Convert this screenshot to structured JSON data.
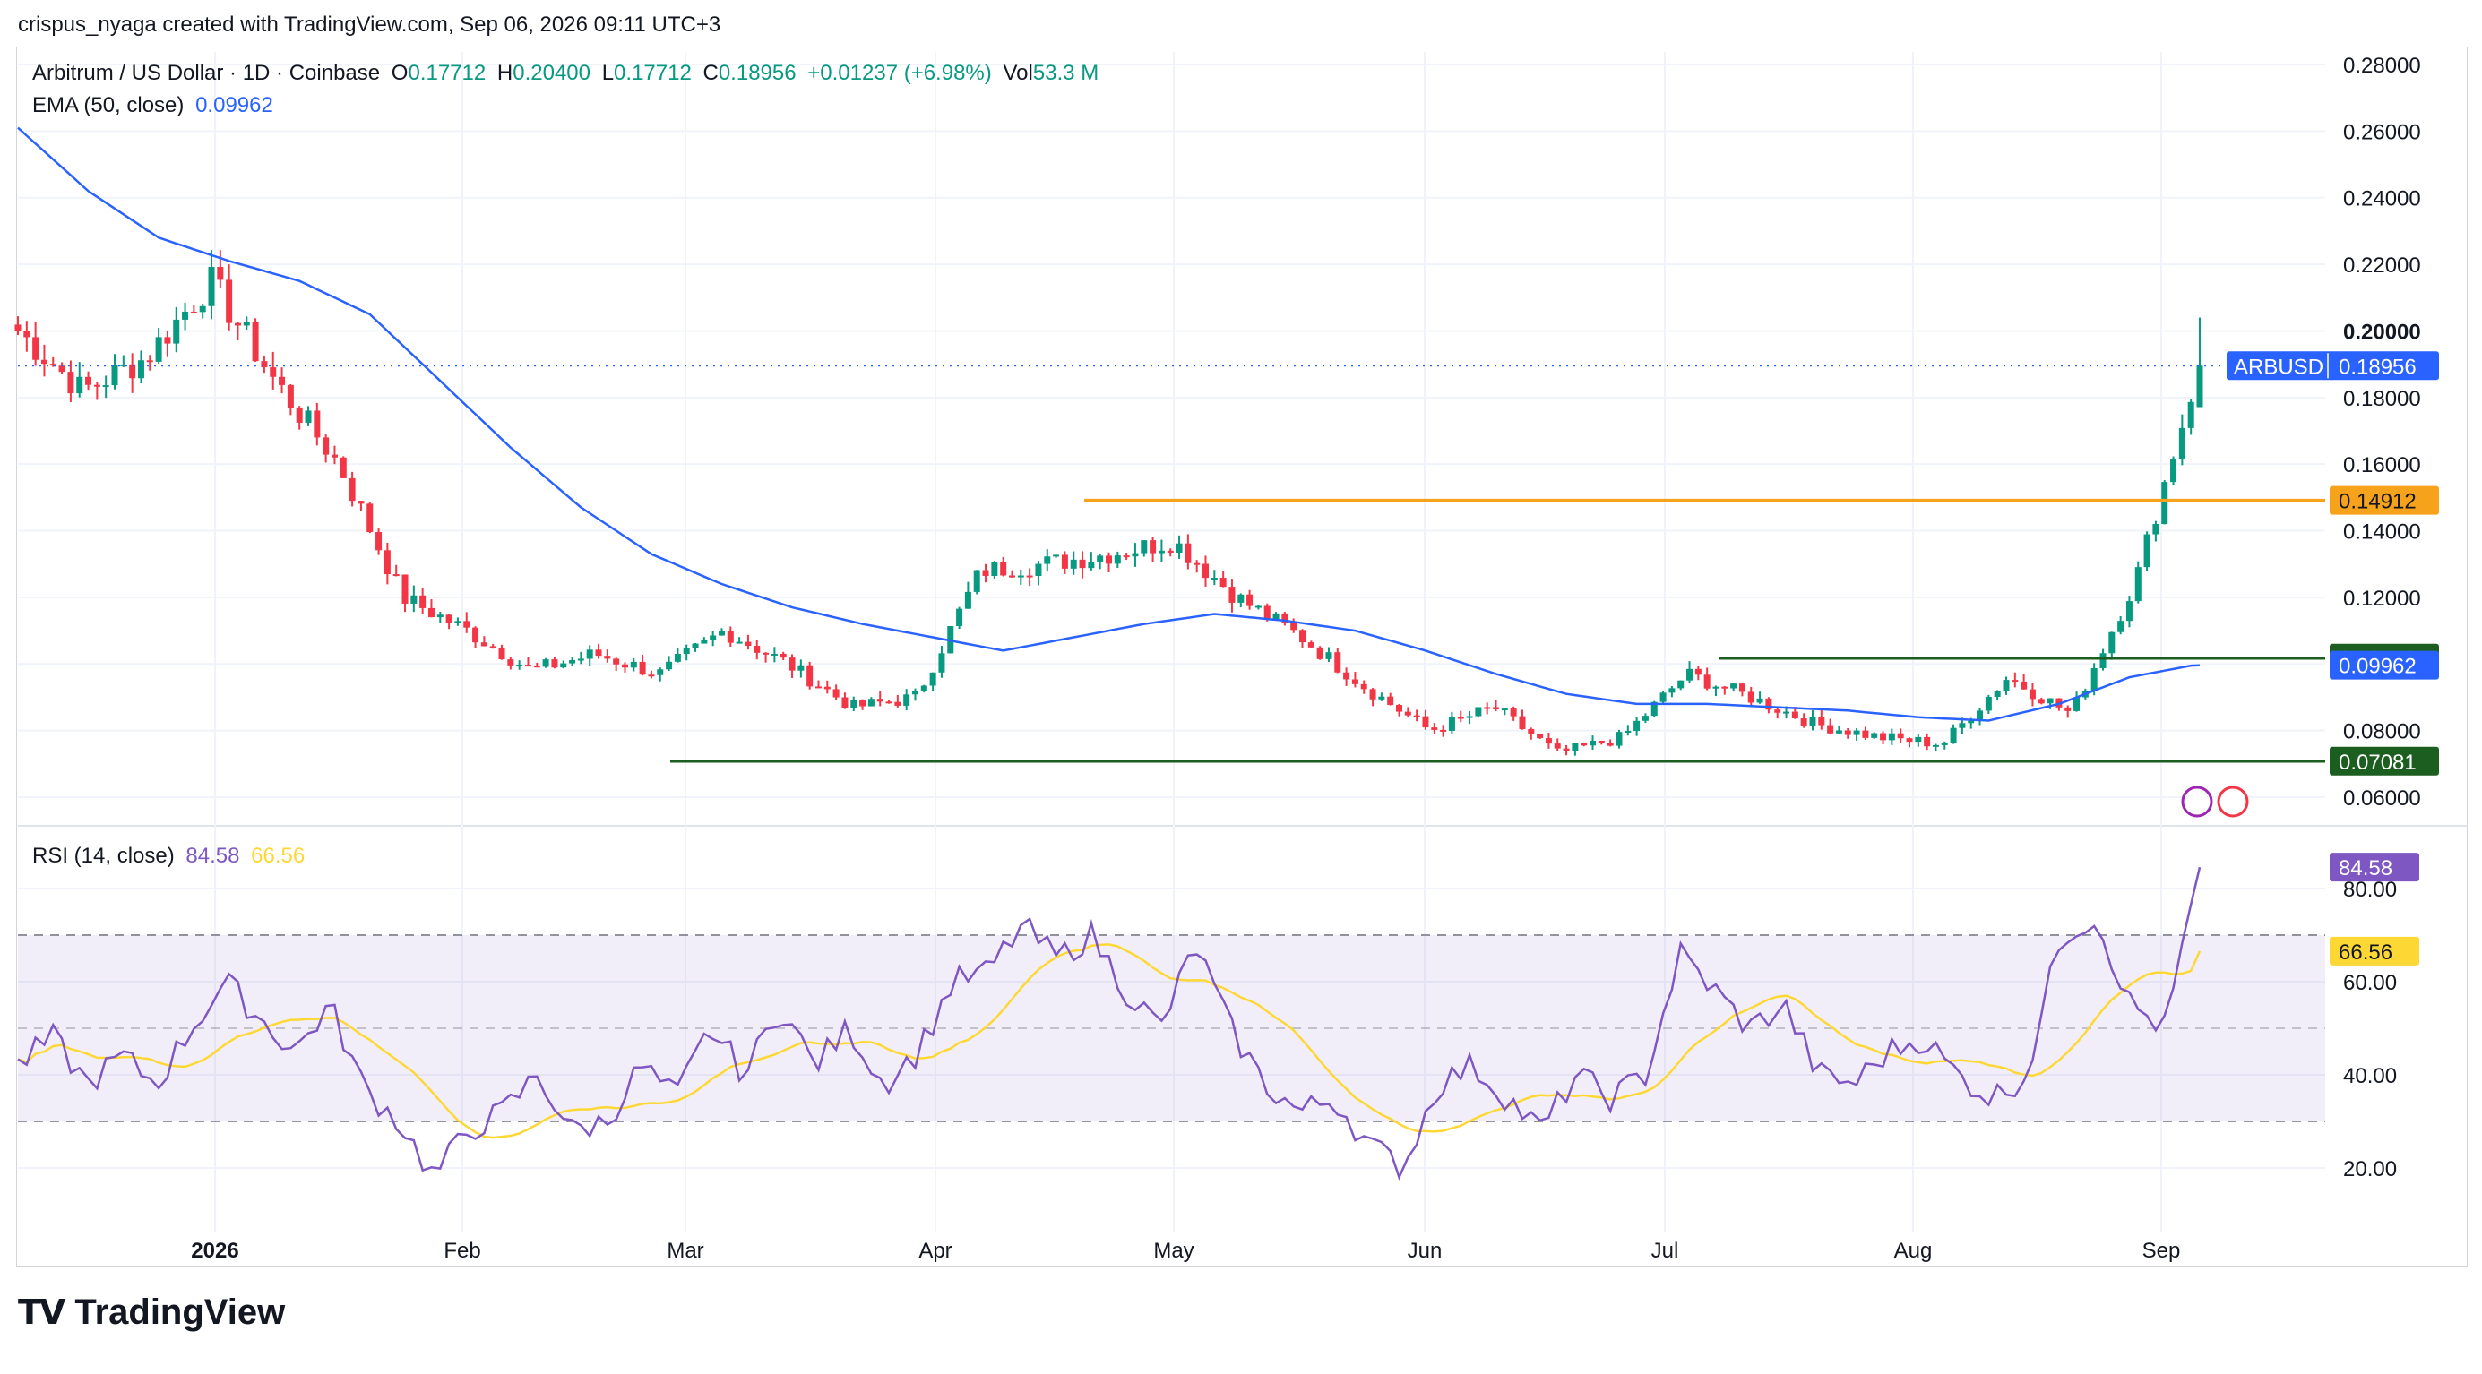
{
  "attribution": "crispus_nyaga created with TradingView.com, Sep 06, 2026 09:11 UTC+3",
  "legend": {
    "symbol": "Arbitrum / US Dollar · 1D · Coinbase",
    "o_label": "O",
    "o": "0.17712",
    "h_label": "H",
    "h": "0.20400",
    "l_label": "L",
    "l": "0.17712",
    "c_label": "C",
    "c": "0.18956",
    "change": "+0.01237 (+6.98%)",
    "vol_label": "Vol",
    "vol": "53.3 M",
    "ema_label": "EMA (50, close)",
    "ema": "0.09962",
    "rsi_label": "RSI (14, close)",
    "rsi": "84.58",
    "rsi_ma": "66.56"
  },
  "price_tag": {
    "symbol": "ARBUSD",
    "value": "0.18956"
  },
  "brand": "TradingView",
  "colors": {
    "up": "#089981",
    "down": "#f23645",
    "ema": "#2962ff",
    "resistance": "#f7a21b",
    "support": "#1b5e20",
    "rsi": "#7e57c2",
    "rsi_ma": "#fdd835",
    "price_tag": "#2962ff"
  },
  "chart_data": [
    {
      "type": "candlestick",
      "title": "Arbitrum / US Dollar · 1D · Coinbase",
      "x_ticks": [
        "2026",
        "Feb",
        "Mar",
        "Apr",
        "May",
        "Jun",
        "Jul",
        "Aug",
        "Sep"
      ],
      "ylim": [
        0.05,
        0.285
      ],
      "y_ticks": [
        "0.28000",
        "0.26000",
        "0.24000",
        "0.22000",
        "0.20000",
        "0.18000",
        "0.16000",
        "0.14000",
        "0.12000",
        "0.10000",
        "0.08000",
        "0.06000"
      ],
      "levels": [
        {
          "name": "resistance",
          "value": 0.14912,
          "label": "0.14912"
        },
        {
          "name": "support-upper",
          "value": 0.10176,
          "label": "0.10176"
        },
        {
          "name": "support-lower",
          "value": 0.07081,
          "label": "0.07081"
        }
      ],
      "last_close": 0.18956,
      "ema_last": 0.09962,
      "ema_key": [
        0.261,
        0.242,
        0.228,
        0.221,
        0.215,
        0.205,
        0.185,
        0.165,
        0.147,
        0.133,
        0.124,
        0.117,
        0.112,
        0.108,
        0.104,
        0.108,
        0.112,
        0.115,
        0.113,
        0.11,
        0.104,
        0.097,
        0.091,
        0.088,
        0.088,
        0.087,
        0.086,
        0.084,
        0.083,
        0.088,
        0.096,
        0.1
      ],
      "close_key": [
        0.2,
        0.182,
        0.192,
        0.215,
        0.185,
        0.16,
        0.12,
        0.11,
        0.098,
        0.103,
        0.097,
        0.11,
        0.1,
        0.087,
        0.09,
        0.128,
        0.13,
        0.133,
        0.137,
        0.12,
        0.108,
        0.093,
        0.08,
        0.087,
        0.073,
        0.078,
        0.097,
        0.09,
        0.082,
        0.078,
        0.076,
        0.096,
        0.085,
        0.125,
        0.19
      ]
    },
    {
      "type": "line",
      "title": "RSI (14, close)",
      "ylim": [
        10,
        90
      ],
      "y_ticks": [
        "80.00",
        "60.00",
        "40.00",
        "20.00"
      ],
      "bands": [
        30,
        50,
        70
      ],
      "series": [
        {
          "name": "RSI",
          "last": 84.58
        },
        {
          "name": "RSI MA",
          "last": 66.56
        }
      ],
      "rsi_key": [
        42,
        48,
        38,
        44,
        38,
        50,
        60,
        52,
        45,
        55,
        37,
        30,
        18,
        28,
        32,
        40,
        28,
        30,
        42,
        35,
        50,
        40,
        55,
        42,
        50,
        38,
        45,
        60,
        62,
        72,
        65,
        70,
        58,
        50,
        68,
        50,
        38,
        32,
        35,
        25,
        20,
        38,
        42,
        35,
        28,
        40,
        35,
        40,
        66,
        58,
        50,
        55,
        40,
        38,
        45,
        48,
        40,
        35,
        40,
        70,
        74,
        55,
        50,
        84
      ]
    }
  ]
}
